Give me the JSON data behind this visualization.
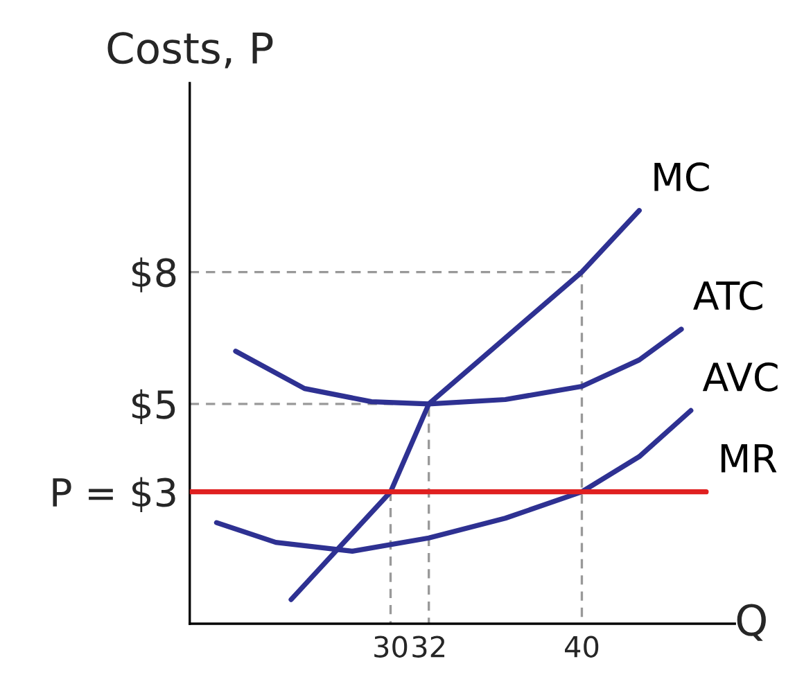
{
  "chart_data": {
    "type": "line",
    "ylabel": "Costs, P",
    "xlabel": "Q",
    "xlim": [
      19.5,
      48
    ],
    "ylim": [
      0,
      12.3
    ],
    "xticks": [
      30,
      32,
      40
    ],
    "yticks": [
      {
        "value": 3,
        "label": "P = $3"
      },
      {
        "value": 5,
        "label": "$5"
      },
      {
        "value": 8,
        "label": "$8"
      }
    ],
    "grid": false,
    "marker": "none",
    "series": [
      {
        "name": "MC",
        "color": "#2e3192",
        "x": [
          24.8,
          30,
          32,
          40,
          43
        ],
        "values": [
          0.55,
          3,
          5,
          8,
          9.4
        ]
      },
      {
        "name": "ATC",
        "color": "#2e3192",
        "x": [
          21.9,
          25.5,
          29,
          32,
          36,
          40,
          43,
          45.2
        ],
        "values": [
          6.2,
          5.35,
          5.05,
          5,
          5.1,
          5.4,
          6,
          6.7
        ]
      },
      {
        "name": "AVC",
        "color": "#2e3192",
        "x": [
          20.9,
          24,
          28,
          32,
          36,
          40,
          43,
          45.7
        ],
        "values": [
          2.3,
          1.85,
          1.65,
          1.95,
          2.4,
          3,
          3.8,
          4.85
        ]
      },
      {
        "name": "MR",
        "color": "#e02020",
        "x": [
          19.5,
          46.5
        ],
        "values": [
          3,
          3
        ]
      },
      {
        "color": "#999999",
        "line_style": "dashed",
        "x": [
          19.5,
          40,
          40
        ],
        "values": [
          8,
          8,
          0
        ]
      },
      {
        "color": "#999999",
        "line_style": "dashed",
        "x": [
          19.5,
          32,
          32
        ],
        "values": [
          5,
          5,
          0
        ]
      },
      {
        "color": "#999999",
        "line_style": "dashed",
        "x": [
          30,
          30
        ],
        "values": [
          3,
          0
        ]
      }
    ]
  }
}
